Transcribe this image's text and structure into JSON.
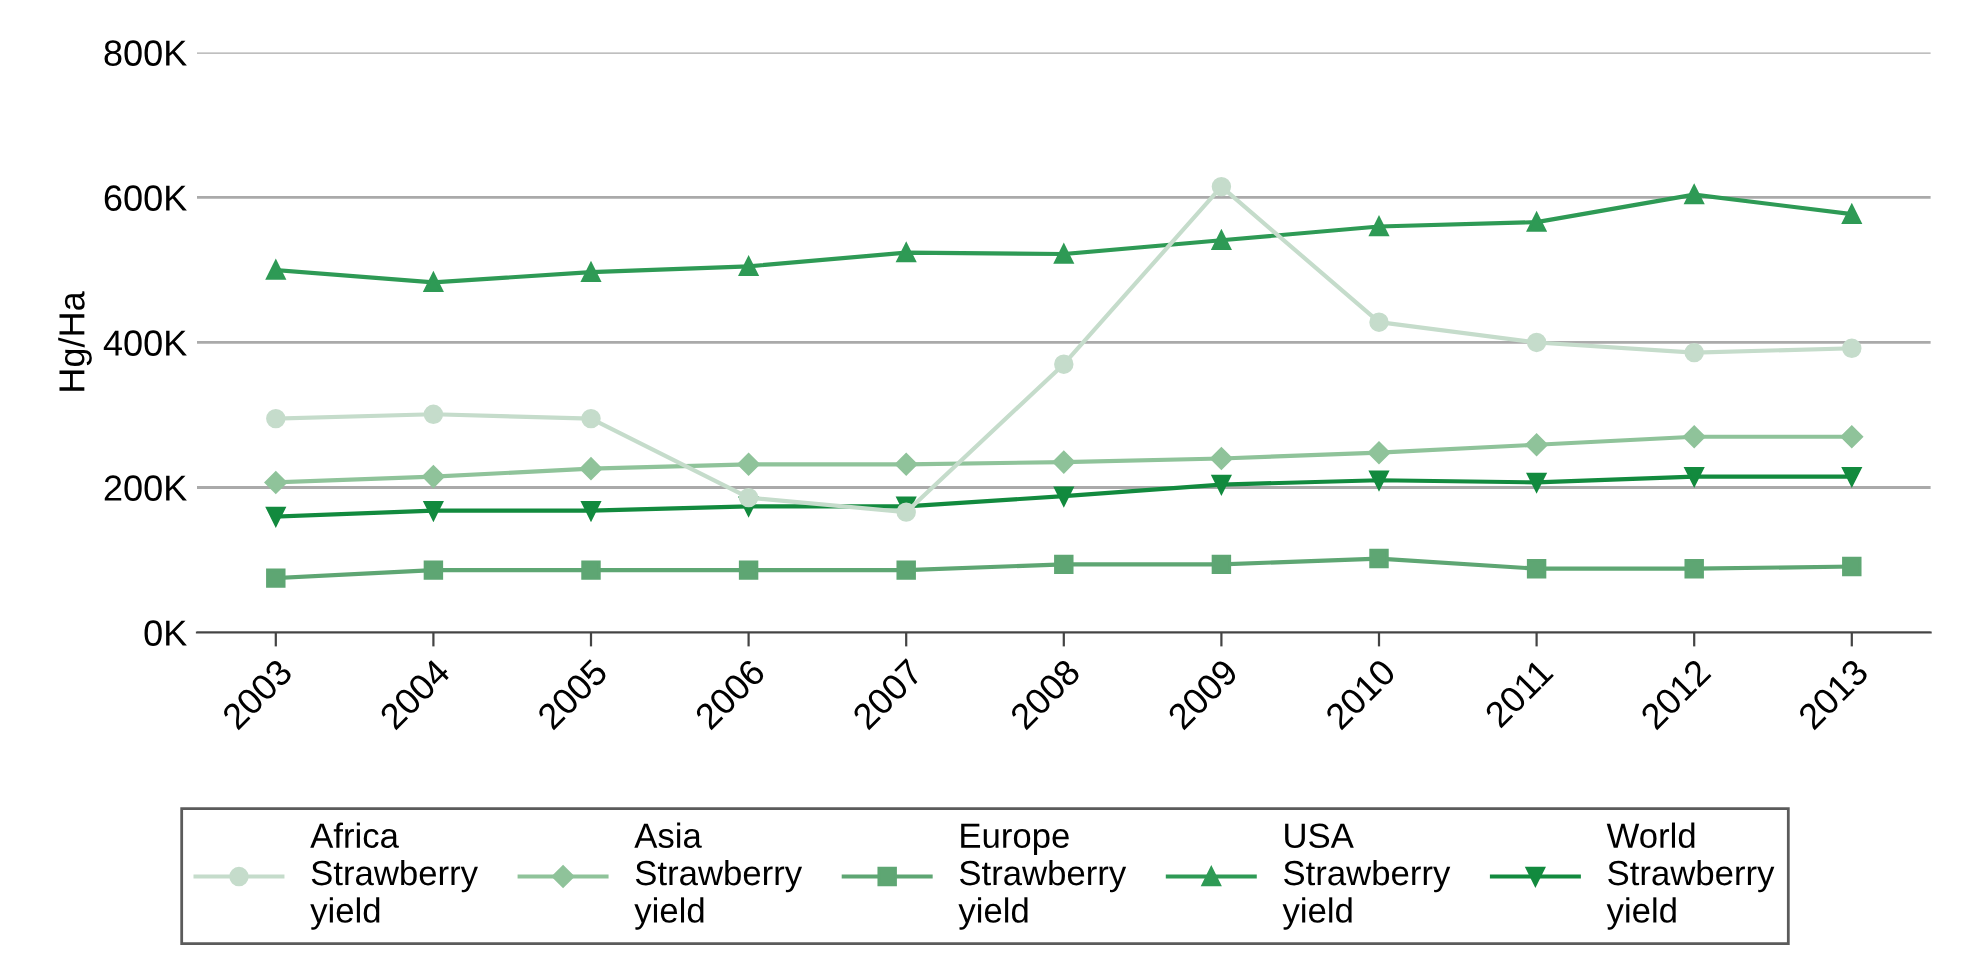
{
  "chart_data": {
    "type": "line",
    "ylabel": "Hg/Ha",
    "categories": [
      "2003",
      "2004",
      "2005",
      "2006",
      "2007",
      "2008",
      "2009",
      "2010",
      "2011",
      "2012",
      "2013"
    ],
    "ylim": [
      0,
      800000
    ],
    "yticks": [
      {
        "value": 0,
        "label": "0K"
      },
      {
        "value": 200000,
        "label": "200K"
      },
      {
        "value": 400000,
        "label": "400K"
      },
      {
        "value": 600000,
        "label": "600K"
      },
      {
        "value": 800000,
        "label": "800K"
      }
    ],
    "grid": "y",
    "legend": "bottom",
    "series": [
      {
        "name": "Africa Strawberry yield",
        "color": "#c5dccb",
        "marker": "circle",
        "values": [
          295000,
          301000,
          295000,
          186000,
          166000,
          370000,
          615000,
          428000,
          400000,
          386000,
          392000
        ]
      },
      {
        "name": "Asia Strawberry yield",
        "color": "#8fc39a",
        "marker": "diamond",
        "values": [
          207000,
          215000,
          226000,
          232000,
          232000,
          235000,
          240000,
          248000,
          259000,
          270000,
          270000
        ]
      },
      {
        "name": "Europe Strawberry yield",
        "color": "#5ea673",
        "marker": "square",
        "values": [
          75000,
          86000,
          86000,
          86000,
          86000,
          94000,
          94000,
          102000,
          88000,
          88000,
          91000
        ]
      },
      {
        "name": "USA Strawberry yield",
        "color": "#2e9a55",
        "marker": "triangle",
        "values": [
          500000,
          483000,
          497000,
          505000,
          524000,
          522000,
          541000,
          560000,
          566000,
          604000,
          577000
        ]
      },
      {
        "name": "World Strawberry yield",
        "color": "#128a3e",
        "marker": "triangle_down",
        "values": [
          160000,
          168000,
          168000,
          174000,
          174000,
          188000,
          204000,
          210000,
          207000,
          215000,
          215000
        ]
      }
    ]
  }
}
